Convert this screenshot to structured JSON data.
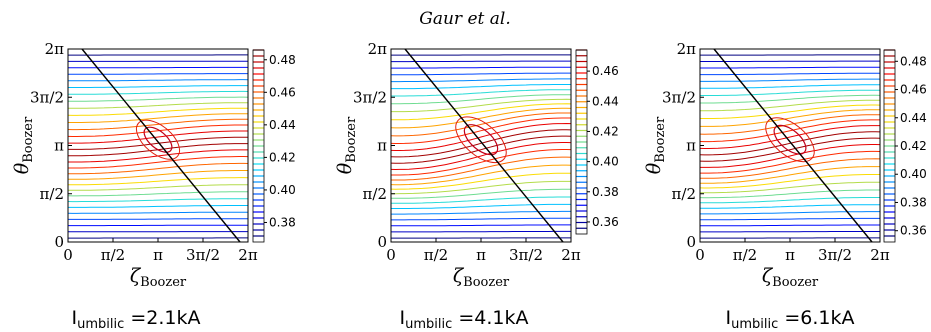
{
  "header": {
    "running_head": "Gaur et al."
  },
  "axes_text": {
    "x_label_main": "ζ",
    "x_label_sub": "Boozer",
    "y_label_main": "θ",
    "y_label_sub": "Boozer",
    "caption_main": "I",
    "caption_sub": "umbilic"
  },
  "chart_data": [
    {
      "type": "contour",
      "caption_value": " =2.1kA",
      "x_ticks": [
        "0",
        "π/2",
        "π",
        "3π/2",
        "2π"
      ],
      "y_ticks": [
        "0",
        "π/2",
        "π",
        "3π/2",
        "2π"
      ],
      "xlim": [
        0,
        6.2832
      ],
      "ylim": [
        0,
        6.2832
      ],
      "colorbar": {
        "ticks": [
          "0.48",
          "0.46",
          "0.44",
          "0.42",
          "0.40",
          "0.38"
        ],
        "tick_values": [
          0.48,
          0.46,
          0.44,
          0.42,
          0.4,
          0.38
        ],
        "range": [
          0.368,
          0.486
        ]
      }
    },
    {
      "type": "contour",
      "caption_value": " =4.1kA",
      "x_ticks": [
        "0",
        "π/2",
        "π",
        "3π/2",
        "2π"
      ],
      "y_ticks": [
        "0",
        "π/2",
        "π",
        "3π/2",
        "2π"
      ],
      "xlim": [
        0,
        6.2832
      ],
      "ylim": [
        0,
        6.2832
      ],
      "colorbar": {
        "ticks": [
          "0.46",
          "0.44",
          "0.42",
          "0.40",
          "0.38",
          "0.36"
        ],
        "tick_values": [
          0.46,
          0.44,
          0.42,
          0.4,
          0.38,
          0.36
        ],
        "range": [
          0.352,
          0.474
        ]
      }
    },
    {
      "type": "contour",
      "caption_value": " =6.1kA",
      "x_ticks": [
        "0",
        "π/2",
        "π",
        "3π/2",
        "2π"
      ],
      "y_ticks": [
        "0",
        "π/2",
        "π",
        "3π/2",
        "2π"
      ],
      "xlim": [
        0,
        6.2832
      ],
      "ylim": [
        0,
        6.2832
      ],
      "colorbar": {
        "ticks": [
          "0.48",
          "0.46",
          "0.44",
          "0.42",
          "0.40",
          "0.38",
          "0.36"
        ],
        "tick_values": [
          0.48,
          0.46,
          0.44,
          0.42,
          0.4,
          0.38,
          0.36
        ],
        "range": [
          0.352,
          0.488
        ]
      }
    }
  ]
}
